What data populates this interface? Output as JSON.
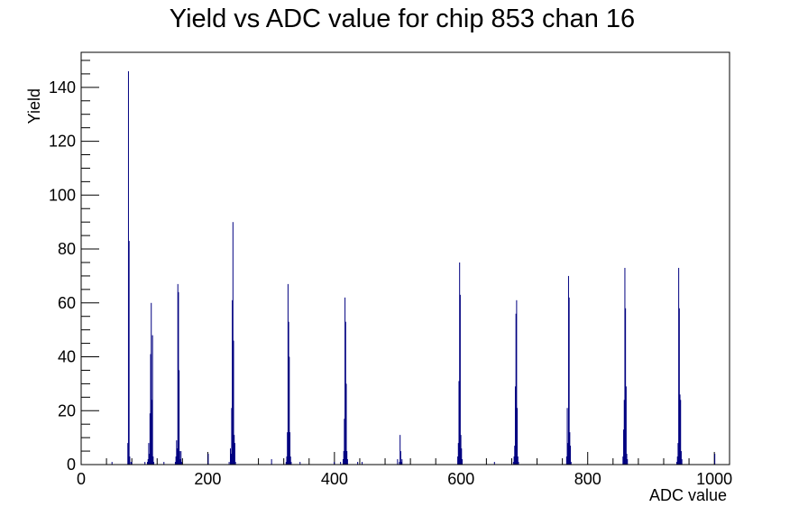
{
  "chart_data": {
    "type": "bar",
    "title": "Yield vs ADC value for chip 853 chan 16",
    "xlabel": "ADC value",
    "ylabel": "Yield",
    "xlim": [
      0,
      1024
    ],
    "ylim": [
      0,
      153
    ],
    "x_ticks": [
      0,
      200,
      400,
      600,
      800,
      1000
    ],
    "y_ticks": [
      0,
      20,
      40,
      60,
      80,
      100,
      120,
      140
    ],
    "grid": false,
    "legend": "none",
    "series_color": "#000080",
    "series": [
      {
        "bins": [
          [
            48,
            1
          ],
          [
            73,
            8
          ],
          [
            74,
            146
          ],
          [
            75,
            83
          ],
          [
            76,
            3
          ],
          [
            78,
            1
          ],
          [
            79,
            1
          ],
          [
            100,
            1
          ],
          [
            104,
            1
          ],
          [
            105,
            2
          ],
          [
            106,
            8
          ],
          [
            107,
            4
          ],
          [
            108,
            19
          ],
          [
            109,
            41
          ],
          [
            110,
            60
          ],
          [
            111,
            24
          ],
          [
            112,
            48
          ],
          [
            113,
            3
          ],
          [
            114,
            1
          ],
          [
            130,
            1
          ],
          [
            148,
            1
          ],
          [
            149,
            3
          ],
          [
            150,
            9
          ],
          [
            151,
            6
          ],
          [
            152,
            67
          ],
          [
            153,
            64
          ],
          [
            154,
            35
          ],
          [
            155,
            5
          ],
          [
            156,
            2
          ],
          [
            157,
            5
          ],
          [
            158,
            1
          ],
          [
            200,
            4
          ],
          [
            233,
            1
          ],
          [
            235,
            6
          ],
          [
            236,
            4
          ],
          [
            237,
            21
          ],
          [
            238,
            61
          ],
          [
            239,
            90
          ],
          [
            240,
            46
          ],
          [
            241,
            11
          ],
          [
            242,
            8
          ],
          [
            243,
            1
          ],
          [
            300,
            2
          ],
          [
            323,
            1
          ],
          [
            324,
            3
          ],
          [
            325,
            12
          ],
          [
            326,
            67
          ],
          [
            327,
            53
          ],
          [
            328,
            40
          ],
          [
            329,
            12
          ],
          [
            330,
            3
          ],
          [
            331,
            1
          ],
          [
            345,
            1
          ],
          [
            399,
            1
          ],
          [
            409,
            1
          ],
          [
            413,
            2
          ],
          [
            414,
            5
          ],
          [
            415,
            17
          ],
          [
            416,
            62
          ],
          [
            417,
            53
          ],
          [
            418,
            30
          ],
          [
            419,
            5
          ],
          [
            420,
            2
          ],
          [
            436,
            1
          ],
          [
            443,
            1
          ],
          [
            499,
            2
          ],
          [
            502,
            1
          ],
          [
            503,
            11
          ],
          [
            504,
            5
          ],
          [
            505,
            1
          ],
          [
            506,
            2
          ],
          [
            594,
            3
          ],
          [
            595,
            8
          ],
          [
            596,
            31
          ],
          [
            597,
            75
          ],
          [
            598,
            63
          ],
          [
            599,
            11
          ],
          [
            600,
            6
          ],
          [
            601,
            2
          ],
          [
            652,
            1
          ],
          [
            682,
            1
          ],
          [
            683,
            3
          ],
          [
            684,
            7
          ],
          [
            685,
            29
          ],
          [
            686,
            56
          ],
          [
            687,
            61
          ],
          [
            688,
            21
          ],
          [
            689,
            3
          ],
          [
            690,
            1
          ],
          [
            766,
            3
          ],
          [
            767,
            21
          ],
          [
            768,
            8
          ],
          [
            769,
            70
          ],
          [
            770,
            62
          ],
          [
            771,
            12
          ],
          [
            772,
            7
          ],
          [
            773,
            1
          ],
          [
            855,
            3
          ],
          [
            856,
            13
          ],
          [
            857,
            24
          ],
          [
            858,
            73
          ],
          [
            859,
            58
          ],
          [
            860,
            29
          ],
          [
            861,
            4
          ],
          [
            862,
            2
          ],
          [
            940,
            1
          ],
          [
            941,
            3
          ],
          [
            942,
            8
          ],
          [
            943,
            73
          ],
          [
            944,
            58
          ],
          [
            945,
            26
          ],
          [
            946,
            24
          ],
          [
            947,
            5
          ],
          [
            948,
            2
          ],
          [
            1000,
            4
          ]
        ]
      }
    ]
  }
}
